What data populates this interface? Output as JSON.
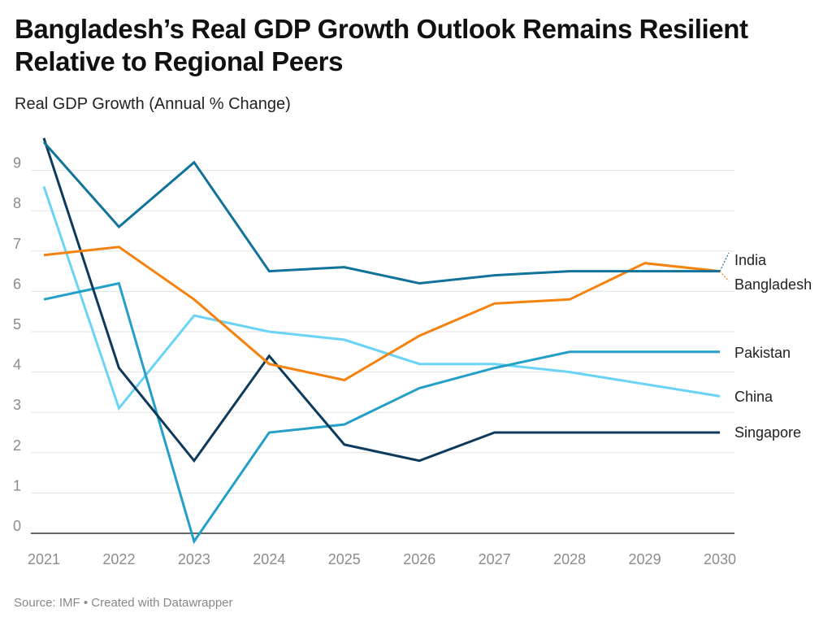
{
  "chart_data": {
    "type": "line",
    "title": "Bangladesh’s Real GDP Growth Outlook Remains Resilient Relative to Regional Peers",
    "subtitle": "Real GDP Growth (Annual % Change)",
    "xlabel": "",
    "ylabel": "Real GDP Growth (Annual % Change)",
    "x": [
      "2021",
      "2022",
      "2023",
      "2024",
      "2025",
      "2026",
      "2027",
      "2028",
      "2029",
      "2030"
    ],
    "y_ticks": [
      "0",
      "1",
      "2",
      "3",
      "4",
      "5",
      "6",
      "7",
      "8",
      "9"
    ],
    "ylim": [
      0,
      9.9
    ],
    "grid": true,
    "legend": "direct labels at right end of lines",
    "series": [
      {
        "name": "India",
        "color": "#11739a",
        "values": [
          9.7,
          7.6,
          9.2,
          6.5,
          6.6,
          6.2,
          6.4,
          6.5,
          6.5,
          6.5
        ]
      },
      {
        "name": "Bangladesh",
        "color": "#f5820f",
        "values": [
          6.9,
          7.1,
          5.8,
          4.2,
          3.8,
          4.9,
          5.7,
          5.8,
          6.7,
          6.5
        ]
      },
      {
        "name": "Pakistan",
        "color": "#24a0c8",
        "values": [
          5.8,
          6.2,
          -0.2,
          2.5,
          2.7,
          3.6,
          4.1,
          4.5,
          4.5,
          4.5
        ]
      },
      {
        "name": "China",
        "color": "#6bd3f5",
        "values": [
          8.6,
          3.1,
          5.4,
          5.0,
          4.8,
          4.2,
          4.2,
          4.0,
          3.7,
          3.4
        ]
      },
      {
        "name": "Singapore",
        "color": "#0e3b5c",
        "values": [
          9.8,
          4.1,
          1.8,
          4.4,
          2.2,
          1.8,
          2.5,
          2.5,
          2.5,
          2.5
        ]
      }
    ]
  },
  "header": {
    "title": "Bangladesh’s Real GDP Growth Outlook Remains Resilient Relative to Regional Peers",
    "subtitle": "Real GDP Growth (Annual % Change)"
  },
  "footer": {
    "text": "Source: IMF • Created with Datawrapper"
  }
}
